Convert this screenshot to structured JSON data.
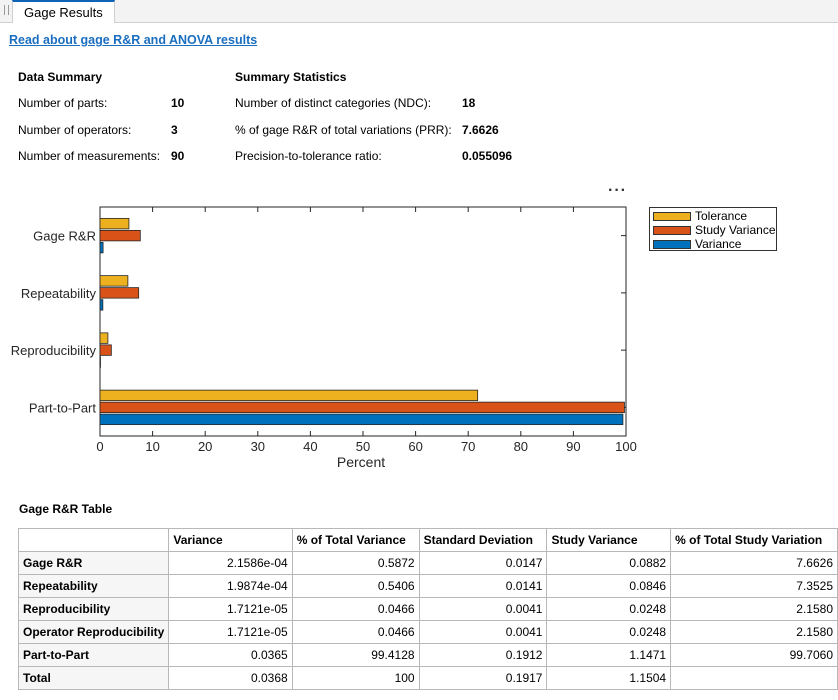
{
  "tab": {
    "label": "Gage Results"
  },
  "doc_link": "Read about gage R&R and ANOVA results",
  "data_summary": {
    "title": "Data Summary",
    "items": [
      {
        "label": "Number of parts:",
        "value": "10"
      },
      {
        "label": "Number of operators:",
        "value": "3"
      },
      {
        "label": "Number of measurements:",
        "value": "90"
      }
    ]
  },
  "summary_statistics": {
    "title": "Summary Statistics",
    "items": [
      {
        "label": "Number of distinct categories (NDC):",
        "value": "18"
      },
      {
        "label": "% of gage R&R of total variations (PRR):",
        "value": "7.6626"
      },
      {
        "label": "Precision-to-tolerance ratio:",
        "value": "0.055096"
      }
    ]
  },
  "chart_data": {
    "type": "bar",
    "orientation": "horizontal",
    "categories": [
      "Gage R&R",
      "Repeatability",
      "Reproducibility",
      "Part-to-Part"
    ],
    "series": [
      {
        "name": "Tolerance",
        "color": "#EDB120",
        "values": [
          5.5,
          5.3,
          1.5,
          71.8
        ]
      },
      {
        "name": "Study Variance",
        "color": "#D95319",
        "values": [
          7.6626,
          7.3525,
          2.158,
          99.706
        ]
      },
      {
        "name": "Variance",
        "color": "#0072BD",
        "values": [
          0.5872,
          0.5406,
          0.0466,
          99.4128
        ]
      }
    ],
    "xlabel": "Percent",
    "ylabel": "",
    "xlim": [
      0,
      100
    ],
    "xticks": [
      "0",
      "10",
      "20",
      "30",
      "40",
      "50",
      "60",
      "70",
      "80",
      "90",
      "100"
    ],
    "grid": false,
    "legend_position": "outside-top-right"
  },
  "table": {
    "title": "Gage R&R Table",
    "columns": [
      "",
      "Variance",
      "% of Total Variance",
      "Standard Deviation",
      "Study Variance",
      "% of Total Study Variation"
    ],
    "rows": [
      [
        "Gage R&R",
        "2.1586e-04",
        "0.5872",
        "0.0147",
        "0.0882",
        "7.6626"
      ],
      [
        "Repeatability",
        "1.9874e-04",
        "0.5406",
        "0.0141",
        "0.0846",
        "7.3525"
      ],
      [
        "Reproducibility",
        "1.7121e-05",
        "0.0466",
        "0.0041",
        "0.0248",
        "2.1580"
      ],
      [
        "Operator Reproducibility",
        "1.7121e-05",
        "0.0466",
        "0.0041",
        "0.0248",
        "2.1580"
      ],
      [
        "Part-to-Part",
        "0.0365",
        "99.4128",
        "0.1912",
        "1.1471",
        "99.7060"
      ],
      [
        "Total",
        "0.0368",
        "100",
        "0.1917",
        "1.1504",
        ""
      ]
    ]
  }
}
